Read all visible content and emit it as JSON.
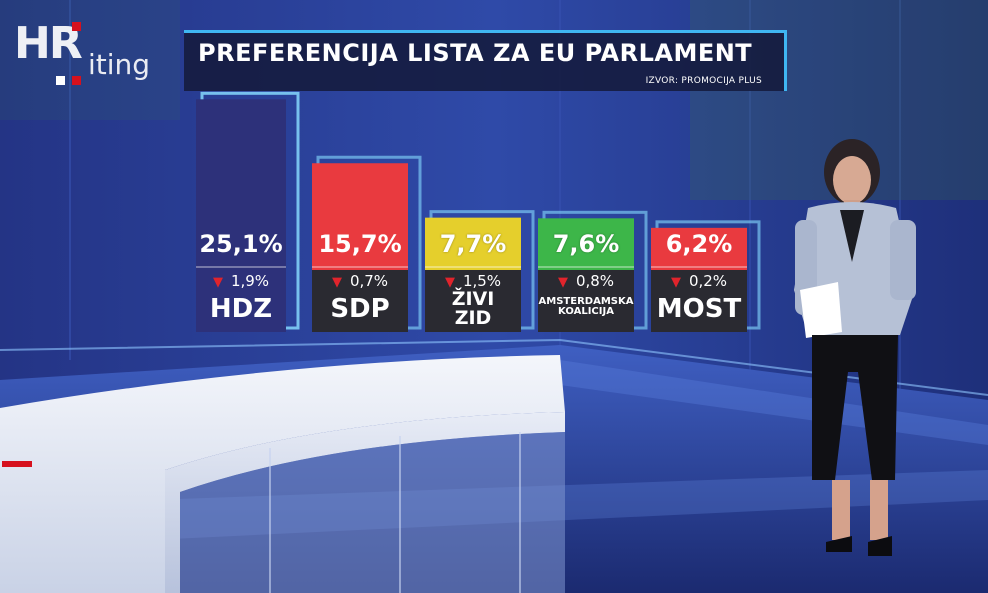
{
  "logo": {
    "brand": "HR",
    "program": "iting"
  },
  "header": {
    "title": "PREFERENCIJA LISTA ZA EU PARLAMENT",
    "source": "IZVOR: PROMOCIJA PLUS"
  },
  "colors": {
    "navy": "#2d317a",
    "red": "#e93a3f",
    "yellow": "#e5cf2c",
    "green": "#3db649",
    "dark_box": "#2a2a31",
    "arrow_red": "#e0242c",
    "accent_blue": "#3fb6f2"
  },
  "chart_data": {
    "type": "bar",
    "title": "PREFERENCIJA LISTA ZA EU PARLAMENT",
    "categories": [
      "HDZ",
      "SDP",
      "ŽIVI ZID",
      "AMSTERDAMSKA KOALICIJA",
      "MOST"
    ],
    "values": [
      25.1,
      15.7,
      7.7,
      7.6,
      6.2
    ],
    "value_labels": [
      "25,1%",
      "15,7%",
      "7,7%",
      "7,6%",
      "6,2%"
    ],
    "change_direction": [
      "down",
      "down",
      "down",
      "down",
      "down"
    ],
    "change_labels": [
      "1,9%",
      "0,7%",
      "1,5%",
      "0,8%",
      "0,2%"
    ],
    "bar_colors": [
      "#2d317a",
      "#e93a3f",
      "#e5cf2c",
      "#3db649",
      "#e93a3f"
    ],
    "grid": false,
    "legend": "none"
  }
}
